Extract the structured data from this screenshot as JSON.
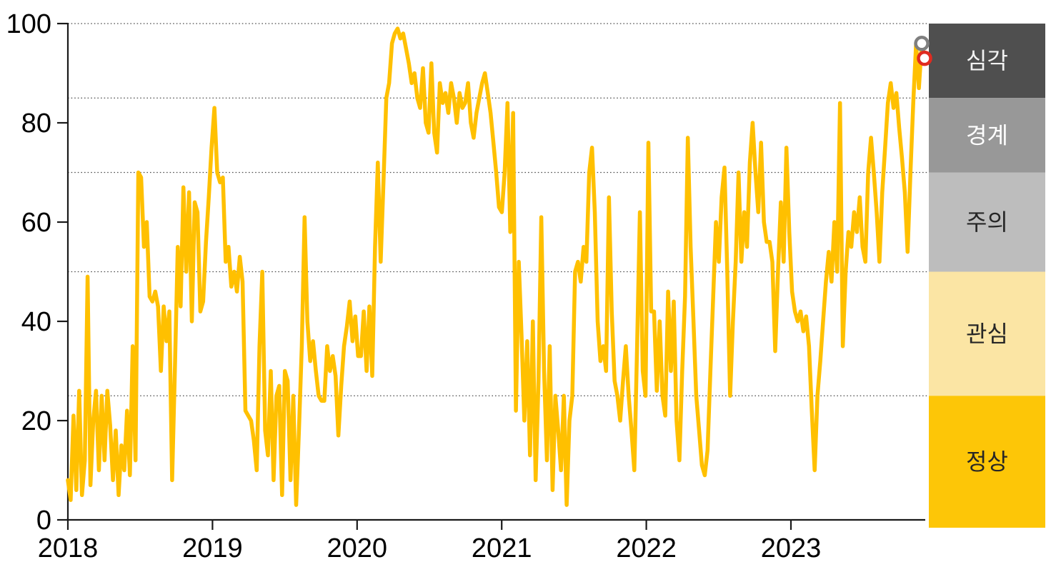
{
  "chart_data": {
    "type": "line",
    "title": "",
    "xlabel": "",
    "ylabel": "",
    "ylim": [
      0,
      100
    ],
    "grid": "dotted horizontal lines at zone boundaries",
    "legend_position": "right vertical zone band",
    "x_ticks": [
      "2018",
      "2019",
      "2020",
      "2021",
      "2022",
      "2023"
    ],
    "y_ticks": [
      "0",
      "20",
      "40",
      "60",
      "80",
      "100"
    ],
    "gridline_values": [
      25,
      50,
      70,
      85,
      100
    ],
    "line_color": "#FFC000",
    "zones": [
      {
        "key": "severe",
        "label": "심각",
        "range": [
          85,
          100
        ],
        "color": "#4F4F4F",
        "text_color": "#F2F2F2"
      },
      {
        "key": "alert",
        "label": "경계",
        "range": [
          70,
          85
        ],
        "color": "#989898",
        "text_color": "#FFFFFF"
      },
      {
        "key": "caution",
        "label": "주의",
        "range": [
          50,
          70
        ],
        "color": "#BDBDBD",
        "text_color": "#262626"
      },
      {
        "key": "interest",
        "label": "관심",
        "range": [
          25,
          50
        ],
        "color": "#FBE5A4",
        "text_color": "#262626"
      },
      {
        "key": "normal",
        "label": "정상",
        "range": [
          0,
          25
        ],
        "color": "#FDC607",
        "text_color": "#262626"
      }
    ],
    "markers": [
      {
        "key": "previous-week-marker",
        "index": 303,
        "value": 96,
        "color": "#7F7F7F"
      },
      {
        "key": "latest-week-marker",
        "index": 304,
        "value": 93,
        "color": "#E02B20"
      }
    ],
    "series": [
      {
        "name": "weekly-risk-index",
        "x_start_year": 2018,
        "points_per_year": 52,
        "values": [
          8,
          4,
          21,
          6,
          26,
          5,
          12,
          49,
          7,
          20,
          26,
          10,
          25,
          12,
          26,
          19,
          8,
          18,
          5,
          15,
          10,
          22,
          9,
          35,
          12,
          70,
          69,
          55,
          60,
          45,
          44,
          46,
          43,
          30,
          43,
          36,
          42,
          8,
          31,
          55,
          43,
          67,
          50,
          66,
          40,
          64,
          62,
          42,
          44,
          56,
          65,
          75,
          83,
          70,
          68,
          69,
          52,
          55,
          47,
          50,
          46,
          53,
          48,
          22,
          21,
          20,
          16,
          10,
          35,
          50,
          18,
          13,
          30,
          8,
          25,
          27,
          5,
          30,
          28,
          8,
          25,
          3,
          18,
          35,
          61,
          40,
          32,
          36,
          30,
          25,
          24,
          24,
          35,
          30,
          33,
          29,
          17,
          27,
          35,
          39,
          44,
          36,
          41,
          33,
          33,
          42,
          30,
          43,
          29,
          55,
          72,
          52,
          68,
          85,
          88,
          96,
          98,
          99,
          97,
          98,
          95,
          92,
          88,
          90,
          85,
          83,
          91,
          80,
          78,
          92,
          78,
          74,
          88,
          84,
          86,
          82,
          88,
          85,
          80,
          86,
          83,
          84,
          88,
          80,
          77,
          82,
          85,
          88,
          90,
          86,
          82,
          76,
          70,
          63,
          62,
          70,
          84,
          58,
          82,
          22,
          52,
          37,
          20,
          36,
          13,
          40,
          8,
          28,
          61,
          30,
          12,
          35,
          6,
          25,
          18,
          10,
          25,
          3,
          20,
          25,
          50,
          52,
          48,
          55,
          52,
          70,
          75,
          62,
          40,
          32,
          35,
          30,
          65,
          42,
          28,
          25,
          20,
          28,
          35,
          25,
          18,
          10,
          35,
          62,
          30,
          25,
          76,
          42,
          42,
          26,
          40,
          25,
          21,
          46,
          30,
          44,
          20,
          12,
          30,
          45,
          77,
          55,
          40,
          25,
          18,
          11,
          9,
          14,
          30,
          45,
          60,
          52,
          65,
          71,
          50,
          25,
          40,
          52,
          70,
          52,
          62,
          55,
          72,
          80,
          70,
          62,
          76,
          60,
          56,
          56,
          52,
          34,
          50,
          64,
          52,
          75,
          58,
          46,
          42,
          40,
          42,
          38,
          41,
          35,
          22,
          10,
          25,
          32,
          40,
          48,
          54,
          48,
          60,
          50,
          84,
          35,
          50,
          58,
          55,
          62,
          58,
          65,
          55,
          52,
          70,
          77,
          70,
          62,
          52,
          66,
          75,
          84,
          88,
          83,
          86,
          79,
          73,
          66,
          54,
          70,
          84,
          96,
          87,
          96,
          93
        ]
      }
    ]
  }
}
